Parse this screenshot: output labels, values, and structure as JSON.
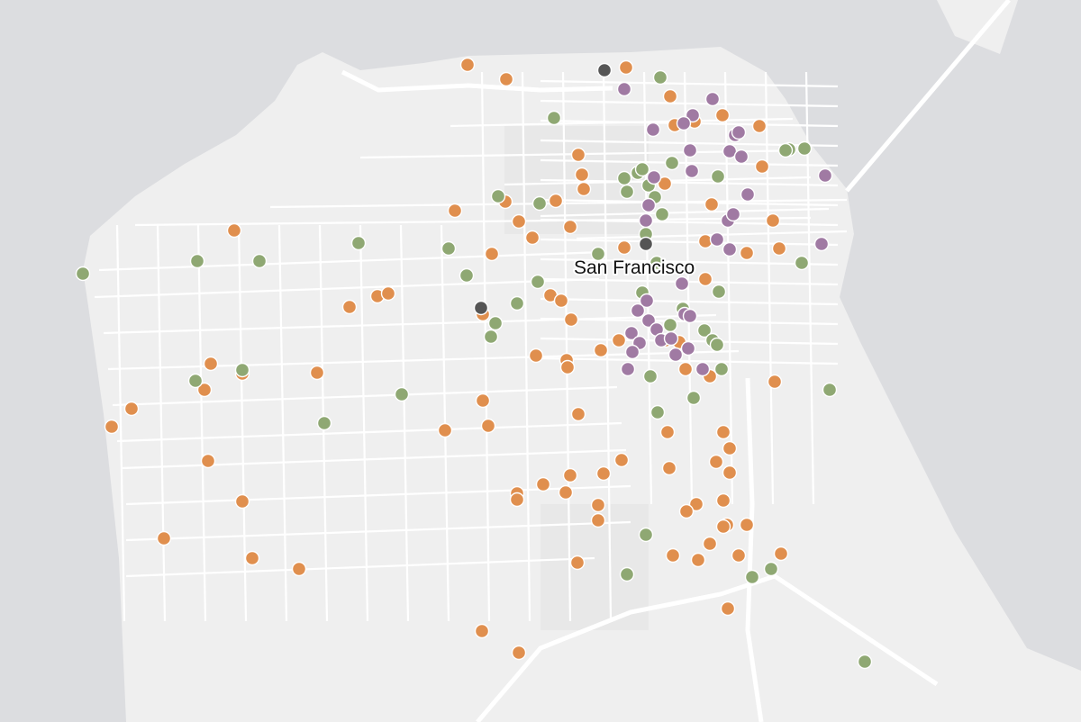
{
  "map": {
    "label": "San Francisco"
  }
}
